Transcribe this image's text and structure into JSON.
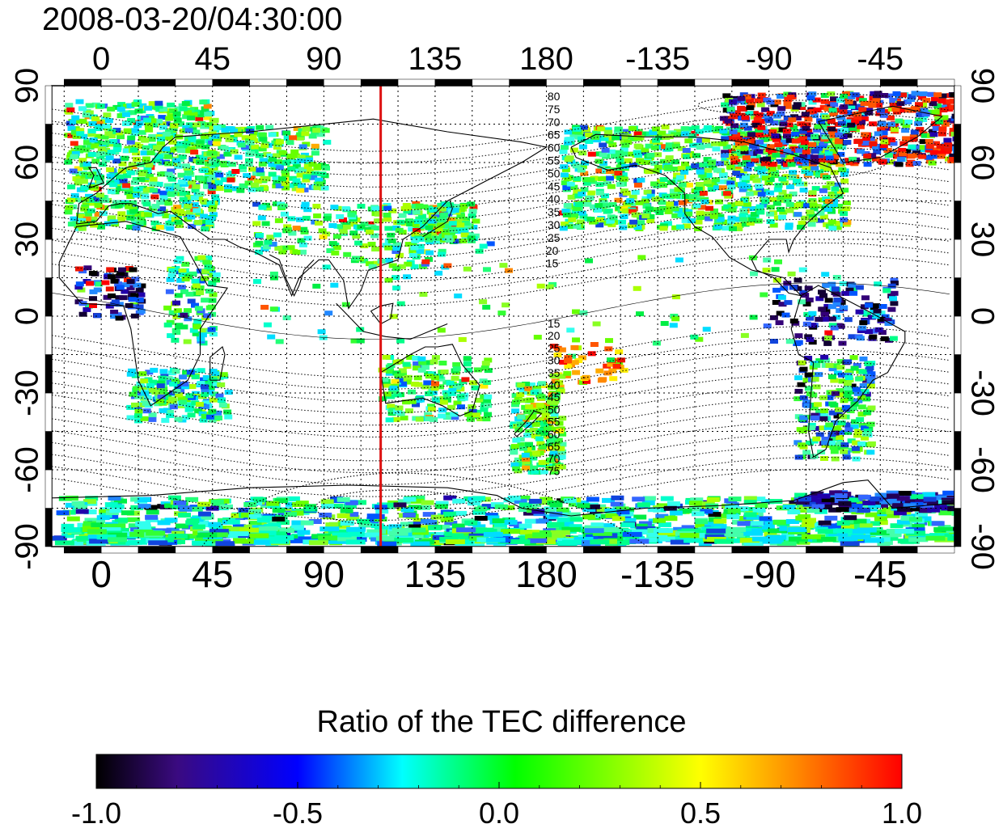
{
  "title": "2008-03-20/04:30:00",
  "map": {
    "lon_ticks": [
      "0",
      "45",
      "90",
      "135",
      "180",
      "-135",
      "-90",
      "-45"
    ],
    "lon_tick_values": [
      0,
      45,
      90,
      135,
      180,
      225,
      270,
      315
    ],
    "lat_ticks_left": [
      "90",
      "60",
      "30",
      "0",
      "-30",
      "-60",
      "-90"
    ],
    "lat_ticks_right": [
      "90",
      "60",
      "30",
      "0",
      "-30",
      "-60",
      "-90"
    ],
    "lat_tick_values": [
      90,
      60,
      30,
      0,
      -30,
      -60,
      -90
    ],
    "lon_range": [
      -20,
      345
    ],
    "lat_range": [
      -90,
      90
    ],
    "terminator_lon": 113,
    "terminator_color": "#dd1111",
    "contour_label_lon": 183,
    "contour_labels_north": [
      "80",
      "75",
      "70",
      "65",
      "60",
      "55",
      "50",
      "45",
      "40",
      "35",
      "30",
      "25",
      "20",
      "15"
    ],
    "contour_labels_south": [
      "15",
      "20",
      "25",
      "30",
      "35",
      "40",
      "45",
      "50",
      "55",
      "60",
      "65",
      "70",
      "75"
    ]
  },
  "colorbar": {
    "title": "Ratio of the TEC difference",
    "tick_labels": [
      "-1.0",
      "-0.5",
      "0.0",
      "0.5",
      "1.0"
    ],
    "range": [
      -1.0,
      1.0
    ],
    "colors": [
      "#000000",
      "#3a0a80",
      "#0000ff",
      "#00ffff",
      "#00ff00",
      "#ffff00",
      "#ff8800",
      "#ff0000"
    ]
  }
}
